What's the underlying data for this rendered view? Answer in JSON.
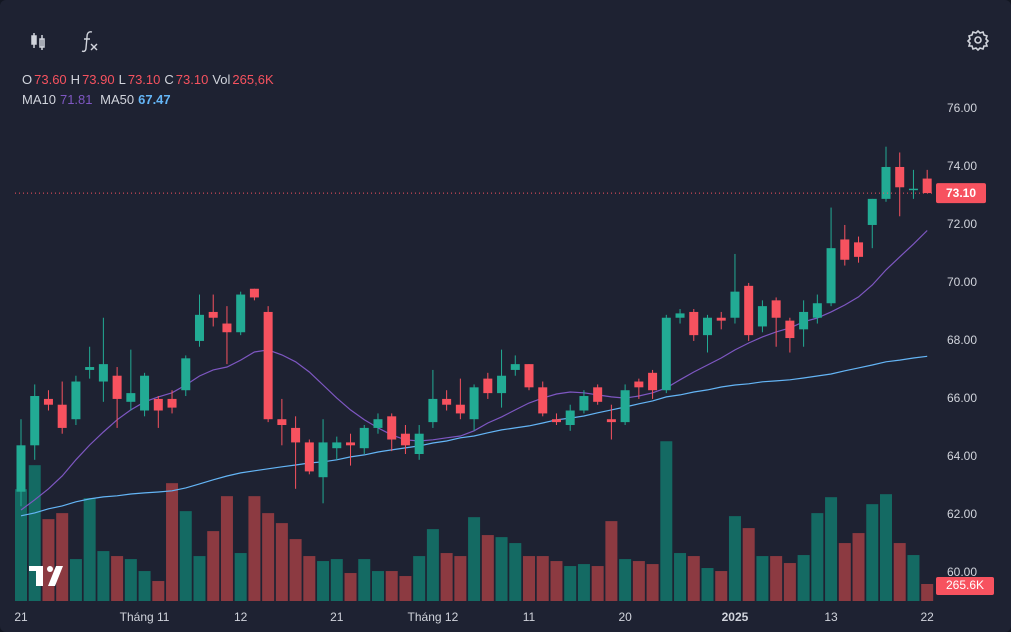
{
  "chart_data": {
    "type": "candlestick",
    "categories": [
      "21",
      null,
      null,
      null,
      null,
      null,
      null,
      null,
      null,
      "Tháng 11",
      null,
      null,
      null,
      null,
      null,
      null,
      "12",
      null,
      null,
      null,
      null,
      null,
      null,
      "21",
      null,
      null,
      null,
      null,
      null,
      null,
      "Tháng 12",
      null,
      null,
      null,
      null,
      null,
      null,
      "11",
      null,
      null,
      null,
      null,
      null,
      null,
      "20",
      null,
      null,
      null,
      null,
      null,
      null,
      null,
      "2025",
      null,
      null,
      null,
      null,
      null,
      null,
      "13",
      null,
      null,
      null,
      null,
      null,
      null,
      "22"
    ],
    "open": [
      62.8,
      64.4,
      66.0,
      65.8,
      65.3,
      67.0,
      66.6,
      66.8,
      65.9,
      65.6,
      66.0,
      66.0,
      66.3,
      68.0,
      69.0,
      68.6,
      68.3,
      69.8,
      69.0,
      65.3,
      65.0,
      64.5,
      63.3,
      64.3,
      64.5,
      64.3,
      65.0,
      65.4,
      64.8,
      64.1,
      65.2,
      66.0,
      65.8,
      65.3,
      66.7,
      66.2,
      67.0,
      67.2,
      66.4,
      65.3,
      65.1,
      65.6,
      66.4,
      65.3,
      65.2,
      66.6,
      66.9,
      66.3,
      68.8,
      69.0,
      68.2,
      68.8,
      68.8,
      69.9,
      68.5,
      69.4,
      68.7,
      68.4,
      68.8,
      69.3,
      71.5,
      71.4,
      72.0,
      72.9,
      74.0,
      73.2,
      73.6
    ],
    "high": [
      65.3,
      66.5,
      66.3,
      66.6,
      66.8,
      67.8,
      68.8,
      67.1,
      67.7,
      66.9,
      66.1,
      66.3,
      67.5,
      69.6,
      69.6,
      69.2,
      69.7,
      69.8,
      69.2,
      66.0,
      65.4,
      64.6,
      65.3,
      64.7,
      64.8,
      65.1,
      65.5,
      65.5,
      65.1,
      65.1,
      67.0,
      66.3,
      66.7,
      66.5,
      66.9,
      67.7,
      67.5,
      67.2,
      66.6,
      65.5,
      65.8,
      66.3,
      66.5,
      65.8,
      66.5,
      66.7,
      67.0,
      68.9,
      69.1,
      69.1,
      68.9,
      69.0,
      71.0,
      70.0,
      69.4,
      69.5,
      68.8,
      69.4,
      69.6,
      72.6,
      72.0,
      71.6,
      72.9,
      74.7,
      74.5,
      73.9,
      73.9
    ],
    "low": [
      62.3,
      63.9,
      65.6,
      64.8,
      65.1,
      66.7,
      65.9,
      65.0,
      65.6,
      65.4,
      65.0,
      65.5,
      66.1,
      67.8,
      68.5,
      67.2,
      68.2,
      69.4,
      65.2,
      64.4,
      62.9,
      63.4,
      62.4,
      63.9,
      63.7,
      64.1,
      64.8,
      64.2,
      64.1,
      63.9,
      65.0,
      65.6,
      65.3,
      64.9,
      66.0,
      65.7,
      66.8,
      66.3,
      65.4,
      65.1,
      64.9,
      65.5,
      65.8,
      64.6,
      65.1,
      66.0,
      66.0,
      66.2,
      68.6,
      68.0,
      67.6,
      68.4,
      68.6,
      68.0,
      68.3,
      67.8,
      67.6,
      67.8,
      68.6,
      69.2,
      70.6,
      70.7,
      71.2,
      72.8,
      72.3,
      72.9,
      73.1
    ],
    "close": [
      64.4,
      66.1,
      65.8,
      65.0,
      66.6,
      67.1,
      67.2,
      66.0,
      66.2,
      66.8,
      65.6,
      65.7,
      67.4,
      68.9,
      68.8,
      68.3,
      69.6,
      69.5,
      65.3,
      65.1,
      64.5,
      63.5,
      64.5,
      64.5,
      64.4,
      65.0,
      65.3,
      64.6,
      64.4,
      64.8,
      66.0,
      65.8,
      65.5,
      66.4,
      66.2,
      66.8,
      67.2,
      66.4,
      65.5,
      65.2,
      65.6,
      66.1,
      65.9,
      65.2,
      66.3,
      66.4,
      66.3,
      68.8,
      68.95,
      68.2,
      68.8,
      68.7,
      69.7,
      68.2,
      69.2,
      68.8,
      68.1,
      69.0,
      69.3,
      71.2,
      70.8,
      70.9,
      72.9,
      74.0,
      73.3,
      73.25,
      73.1
    ],
    "volume": [
      1747000,
      2122000,
      1279000,
      1373000,
      655000,
      1607000,
      780000,
      702000,
      655000,
      468000,
      312000,
      1841000,
      1404000,
      702000,
      1092000,
      1638000,
      749000,
      1638000,
      1373000,
      1217000,
      967000,
      702000,
      624000,
      655000,
      437000,
      655000,
      468000,
      468000,
      390000,
      702000,
      1123000,
      749000,
      702000,
      1310000,
      1030000,
      998000,
      905000,
      702000,
      702000,
      624000,
      546000,
      577000,
      546000,
      1248000,
      655000,
      624000,
      577000,
      2496000,
      749000,
      702000,
      515000,
      468000,
      1326000,
      1139000,
      702000,
      702000,
      593000,
      718000,
      1373000,
      1622000,
      905000,
      1061000,
      1513000,
      1669000,
      905000,
      718000,
      265600
    ],
    "series": [
      {
        "name": "MA10",
        "color": "#7e57c2",
        "values": [
          62.17,
          62.52,
          62.9,
          63.34,
          63.9,
          64.41,
          64.86,
          65.28,
          65.62,
          65.9,
          66.07,
          66.21,
          66.48,
          66.79,
          67.0,
          67.1,
          67.34,
          67.62,
          67.69,
          67.52,
          67.28,
          66.93,
          66.48,
          66.03,
          65.62,
          65.28,
          65.0,
          64.76,
          64.59,
          64.55,
          64.59,
          64.66,
          64.72,
          64.9,
          65.17,
          65.38,
          65.62,
          65.86,
          66.03,
          66.17,
          66.24,
          66.21,
          66.14,
          66.07,
          66.03,
          66.1,
          66.21,
          66.38,
          66.66,
          66.93,
          67.17,
          67.41,
          67.69,
          67.93,
          68.14,
          68.31,
          68.45,
          68.66,
          68.79,
          69.0,
          69.24,
          69.52,
          69.93,
          70.45,
          70.9,
          71.34,
          71.81
        ]
      },
      {
        "name": "MA50",
        "color": "#64b5f6",
        "values": [
          61.97,
          62.07,
          62.21,
          62.31,
          62.45,
          62.55,
          62.62,
          62.66,
          62.72,
          62.76,
          62.79,
          62.83,
          62.93,
          63.07,
          63.21,
          63.34,
          63.45,
          63.52,
          63.59,
          63.66,
          63.72,
          63.79,
          63.83,
          63.9,
          64.0,
          64.07,
          64.17,
          64.24,
          64.31,
          64.38,
          64.48,
          64.55,
          64.66,
          64.72,
          64.83,
          64.93,
          65.0,
          65.07,
          65.17,
          65.28,
          65.34,
          65.41,
          65.52,
          65.62,
          65.72,
          65.83,
          65.93,
          66.07,
          66.14,
          66.24,
          66.31,
          66.41,
          66.48,
          66.52,
          66.59,
          66.62,
          66.66,
          66.72,
          66.79,
          66.86,
          66.97,
          67.07,
          67.17,
          67.28,
          67.34,
          67.41,
          67.47
        ]
      }
    ],
    "ylim": [
      59.03,
      77.0
    ],
    "yticks": [
      {
        "value": 60,
        "label": "60.00"
      },
      {
        "value": 62,
        "label": "62.00"
      },
      {
        "value": 64,
        "label": "64.00"
      },
      {
        "value": 66,
        "label": "66.00"
      },
      {
        "value": 68,
        "label": "68.00"
      },
      {
        "value": 70,
        "label": "70.00"
      },
      {
        "value": 72,
        "label": "72.00"
      },
      {
        "value": 74,
        "label": "74.00"
      },
      {
        "value": 76,
        "label": "76.00"
      }
    ],
    "volume_lim": [
      0,
      8140000
    ],
    "up_color": "#22ab94",
    "down_color": "#f7525f",
    "up_volume_color": "#146a63",
    "down_volume_color": "#8c3a41",
    "ohlc_legend": [
      {
        "key": "O",
        "value": "73.60"
      },
      {
        "key": "H",
        "value": "73.90"
      },
      {
        "key": "L",
        "value": "73.10"
      },
      {
        "key": "C",
        "value": "73.10"
      },
      {
        "key": "Vol",
        "value": "265,6K"
      }
    ],
    "last_price_label": "73.10",
    "last_volume_label": "265.6K"
  }
}
